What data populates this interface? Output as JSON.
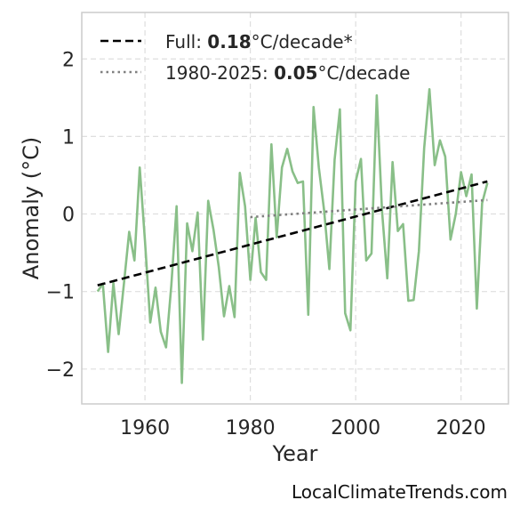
{
  "chart_data": {
    "type": "line",
    "xlabel": "Year",
    "ylabel": "Anomaly (°C)",
    "xlim": [
      1948,
      2029
    ],
    "ylim": [
      -2.45,
      2.6
    ],
    "x_ticks": [
      1960,
      1980,
      2000,
      2020
    ],
    "y_ticks": [
      -2,
      -1,
      0,
      1,
      2
    ],
    "y_tick_labels": [
      "−2",
      "−1",
      "0",
      "1",
      "2"
    ],
    "grid": true,
    "legend_position": "top-left",
    "series": [
      {
        "style": "solid",
        "color": "#89bf88",
        "x": [
          1951,
          1952,
          1953,
          1954,
          1955,
          1956,
          1957,
          1958,
          1959,
          1960,
          1961,
          1962,
          1963,
          1964,
          1965,
          1966,
          1967,
          1968,
          1969,
          1970,
          1971,
          1972,
          1973,
          1974,
          1975,
          1976,
          1977,
          1978,
          1979,
          1980,
          1981,
          1982,
          1983,
          1984,
          1985,
          1986,
          1987,
          1988,
          1989,
          1990,
          1991,
          1992,
          1993,
          1994,
          1995,
          1996,
          1997,
          1998,
          1999,
          2000,
          2001,
          2002,
          2003,
          2004,
          2005,
          2006,
          2007,
          2008,
          2009,
          2010,
          2011,
          2012,
          2013,
          2014,
          2015,
          2016,
          2017,
          2018,
          2019,
          2020,
          2021,
          2022,
          2023,
          2024,
          2025
        ],
        "y": [
          -1.0,
          -0.9,
          -1.78,
          -0.89,
          -1.55,
          -0.9,
          -0.23,
          -0.6,
          0.6,
          -0.35,
          -1.4,
          -0.95,
          -1.52,
          -1.72,
          -0.92,
          0.1,
          -2.18,
          -0.12,
          -0.48,
          0.02,
          -1.62,
          0.17,
          -0.2,
          -0.68,
          -1.32,
          -0.93,
          -1.33,
          0.53,
          0.1,
          -0.85,
          -0.05,
          -0.75,
          -0.85,
          0.9,
          -0.3,
          0.6,
          0.84,
          0.55,
          0.4,
          0.42,
          -1.3,
          1.38,
          0.6,
          0.05,
          -0.71,
          0.7,
          1.35,
          -1.28,
          -1.5,
          0.42,
          0.71,
          -0.6,
          -0.51,
          1.53,
          0.04,
          -0.83,
          0.67,
          -0.22,
          -0.13,
          -1.12,
          -1.11,
          -0.48,
          0.85,
          1.61,
          0.63,
          0.95,
          0.74,
          -0.33,
          0.0,
          0.54,
          0.23,
          0.51,
          -1.22,
          0.14,
          0.4
        ]
      },
      {
        "name": "Full: 0.18°C/decade*",
        "style": "dashed",
        "color": "#000000",
        "x": [
          1951,
          2025
        ],
        "y": [
          -0.92,
          0.42
        ]
      },
      {
        "name": "1980-2025: 0.05°C/decade",
        "style": "dotted",
        "color": "#808080",
        "x": [
          1980,
          2025
        ],
        "y": [
          -0.04,
          0.18
        ]
      }
    ],
    "legend": [
      {
        "prefix": "Full: ",
        "value": "0.18",
        "suffix": "°C/decade*"
      },
      {
        "prefix": "1980-2025: ",
        "value": "0.05",
        "suffix": "°C/decade"
      }
    ],
    "credit": "LocalClimateTrends.com"
  }
}
